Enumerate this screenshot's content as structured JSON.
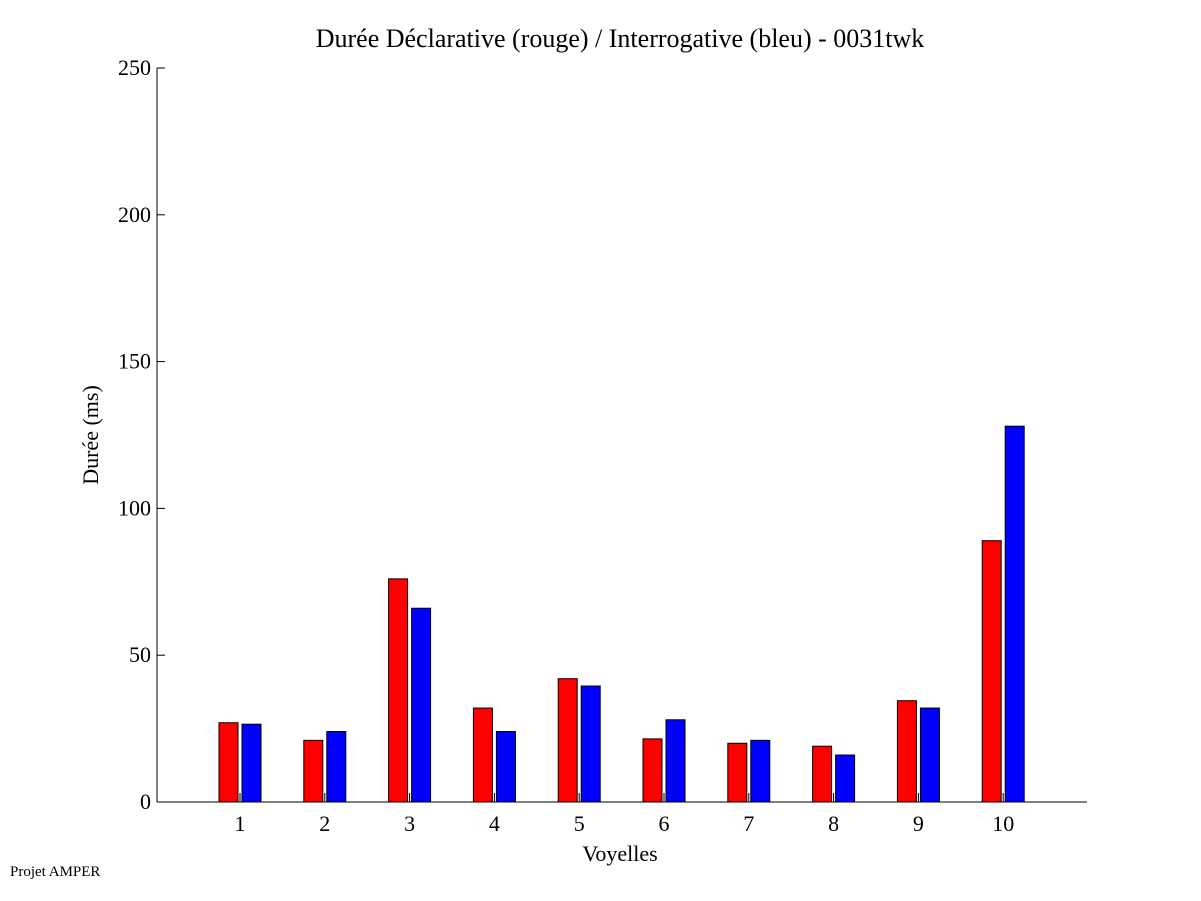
{
  "footer": {
    "label": "Projet AMPER"
  },
  "chart_data": {
    "type": "bar",
    "title": "Durée Déclarative (rouge) / Interrogative (bleu) - 0031twk",
    "xlabel": "Voyelles",
    "ylabel": "Durée (ms)",
    "categories": [
      "1",
      "2",
      "3",
      "4",
      "5",
      "6",
      "7",
      "8",
      "9",
      "10"
    ],
    "ylim": [
      0,
      250
    ],
    "yticks": [
      0,
      50,
      100,
      150,
      200,
      250
    ],
    "grid": false,
    "series": [
      {
        "color": "#ff0000",
        "values": [
          27,
          21,
          76,
          32,
          42,
          21.5,
          20,
          19,
          34.5,
          89
        ]
      },
      {
        "color": "#0000ff",
        "values": [
          26.5,
          24,
          66,
          24,
          39.5,
          28,
          21,
          16,
          32,
          128
        ]
      }
    ]
  }
}
